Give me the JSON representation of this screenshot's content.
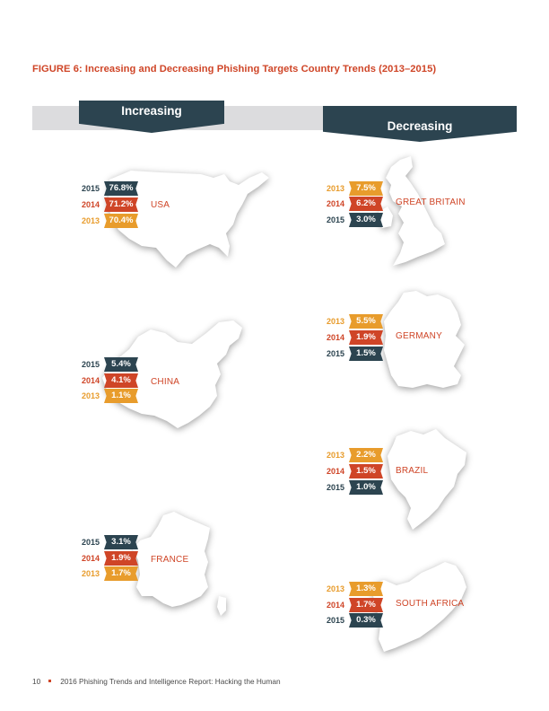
{
  "figure": {
    "title": "FIGURE 6: Increasing and Decreasing Phishing Targets Country Trends (2013–2015)",
    "increasing_label": "Increasing",
    "decreasing_label": "Decreasing"
  },
  "colors": {
    "y2015": "#2c4450",
    "y2014": "#cf4527",
    "y2013": "#e89c2c",
    "band": "#dcdcde"
  },
  "countries": {
    "usa": {
      "name": "USA",
      "shape": "usa-map",
      "rows": [
        {
          "year": "2015",
          "value": "76.8%"
        },
        {
          "year": "2014",
          "value": "71.2%"
        },
        {
          "year": "2013",
          "value": "70.4%"
        }
      ]
    },
    "china": {
      "name": "CHINA",
      "shape": "china-map",
      "rows": [
        {
          "year": "2015",
          "value": "5.4%"
        },
        {
          "year": "2014",
          "value": "4.1%"
        },
        {
          "year": "2013",
          "value": "1.1%"
        }
      ]
    },
    "france": {
      "name": "FRANCE",
      "shape": "france-map",
      "rows": [
        {
          "year": "2015",
          "value": "3.1%"
        },
        {
          "year": "2014",
          "value": "1.9%"
        },
        {
          "year": "2013",
          "value": "1.7%"
        }
      ]
    },
    "great_britain": {
      "name": "GREAT BRITAIN",
      "shape": "great-britain-map",
      "rows": [
        {
          "year": "2013",
          "value": "7.5%"
        },
        {
          "year": "2014",
          "value": "6.2%"
        },
        {
          "year": "2015",
          "value": "3.0%"
        }
      ]
    },
    "germany": {
      "name": "GERMANY",
      "shape": "germany-map",
      "rows": [
        {
          "year": "2013",
          "value": "5.5%"
        },
        {
          "year": "2014",
          "value": "1.9%"
        },
        {
          "year": "2015",
          "value": "1.5%"
        }
      ]
    },
    "brazil": {
      "name": "BRAZIL",
      "shape": "brazil-map",
      "rows": [
        {
          "year": "2013",
          "value": "2.2%"
        },
        {
          "year": "2014",
          "value": "1.5%"
        },
        {
          "year": "2015",
          "value": "1.0%"
        }
      ]
    },
    "south_africa": {
      "name": "SOUTH AFRICA",
      "shape": "south-africa-map",
      "rows": [
        {
          "year": "2013",
          "value": "1.3%"
        },
        {
          "year": "2014",
          "value": "1.7%"
        },
        {
          "year": "2015",
          "value": "0.3%"
        }
      ]
    }
  },
  "footer": {
    "page_number": "10",
    "text": "2016 Phishing Trends and Intelligence Report: Hacking the Human"
  }
}
